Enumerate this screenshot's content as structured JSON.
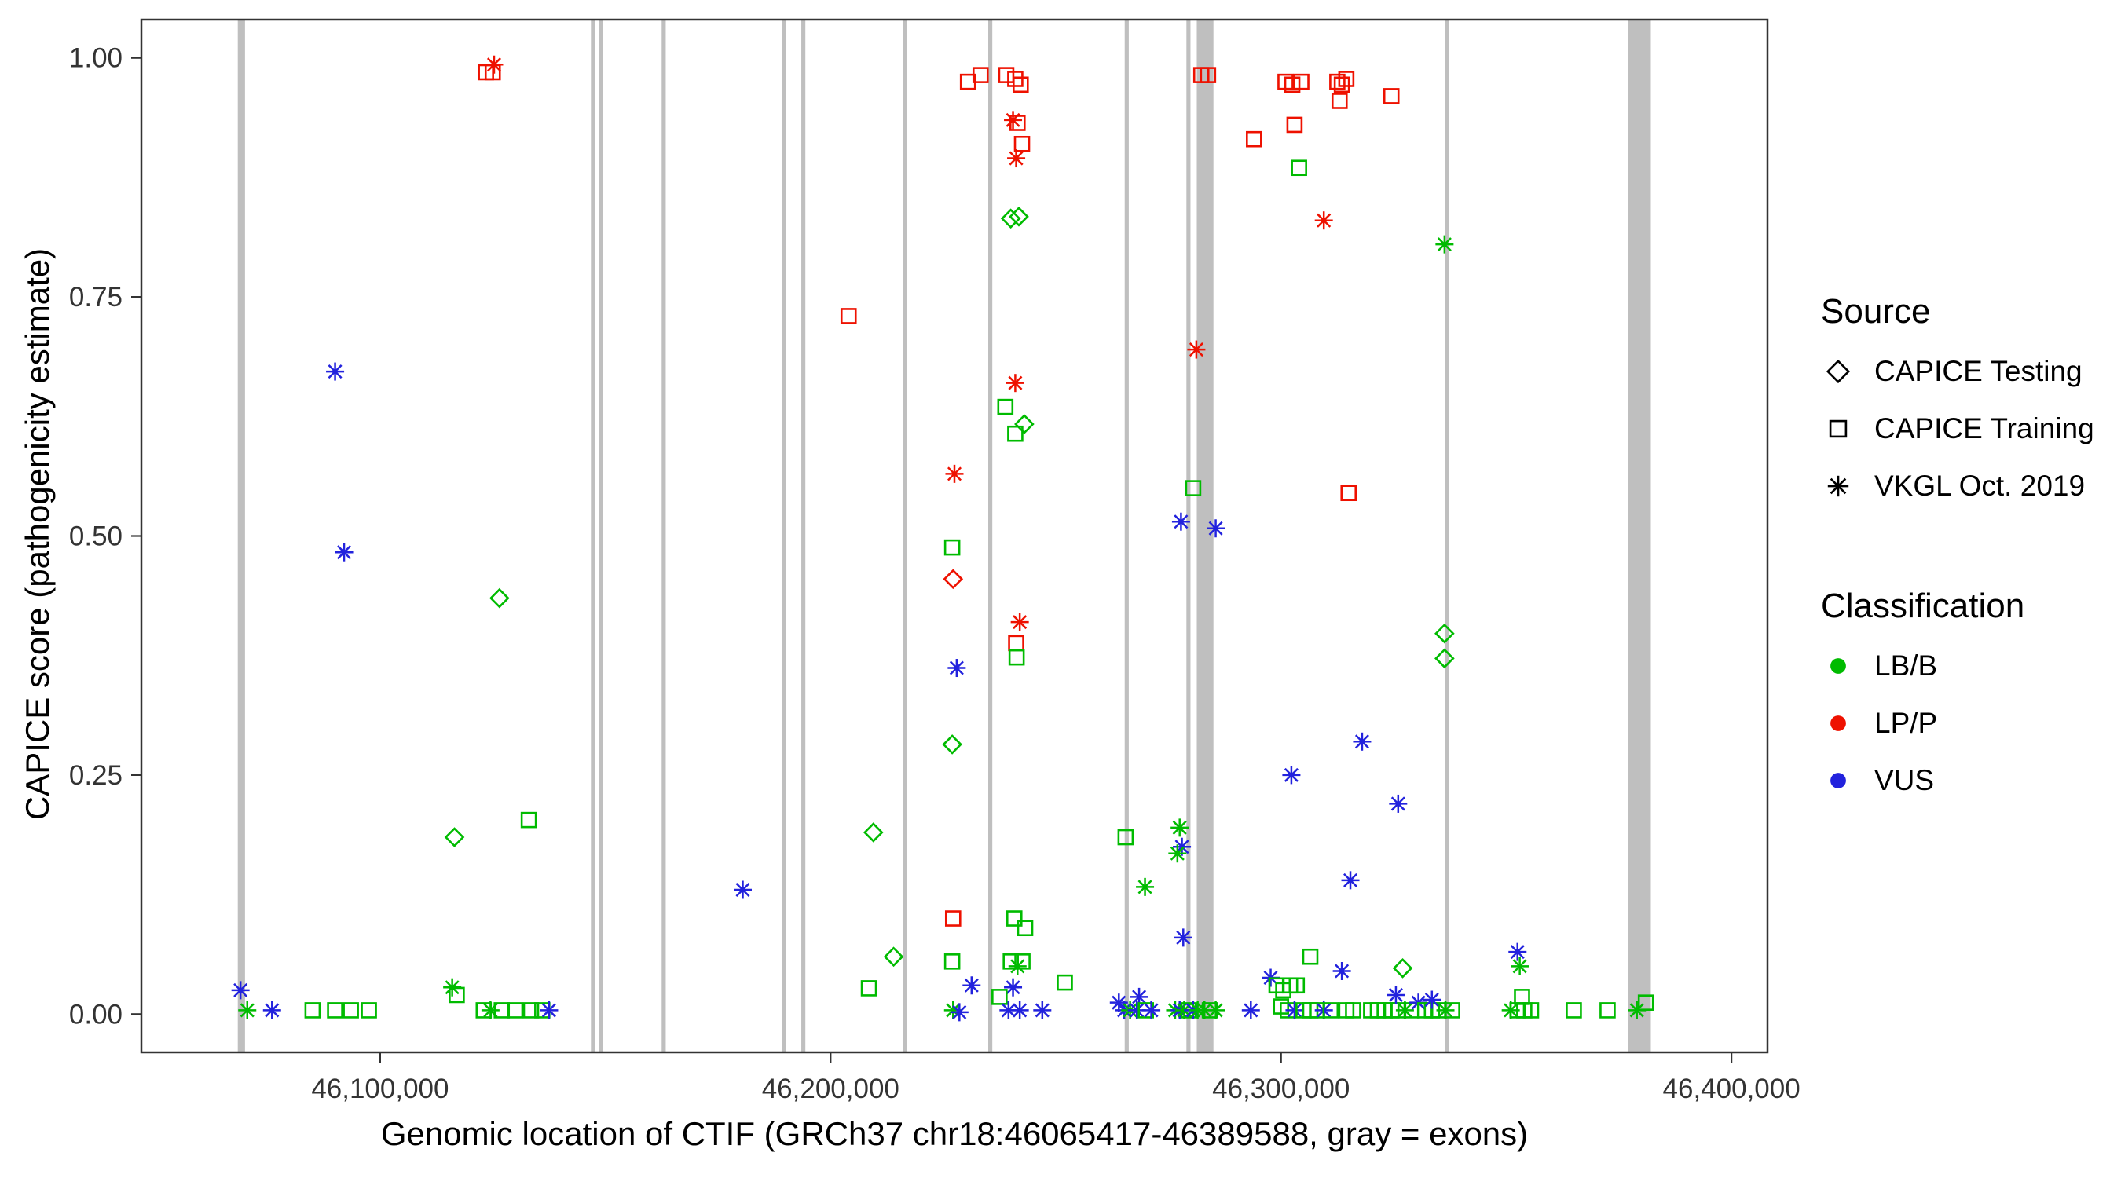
{
  "figure": {
    "xlabel": "Genomic location of CTIF (GRCh37 chr18:46065417-46389588, gray = exons)",
    "ylabel": "CAPICE score (pathogenicity estimate)"
  },
  "legend": {
    "source_title": "Source",
    "source_items": [
      {
        "label": "CAPICE Testing",
        "shape": "diamond"
      },
      {
        "label": "CAPICE Training",
        "shape": "square"
      },
      {
        "label": "VKGL Oct. 2019",
        "shape": "asterisk"
      }
    ],
    "classification_title": "Classification",
    "classification_items": [
      {
        "label": "LB/B",
        "key": "LB/B"
      },
      {
        "label": "LP/P",
        "key": "LP/P"
      },
      {
        "label": "VUS",
        "key": "VUS"
      }
    ]
  },
  "chart_data": {
    "type": "scatter",
    "title": "",
    "xlabel": "Genomic location of CTIF (GRCh37 chr18:46065417-46389588, gray = exons)",
    "ylabel": "CAPICE score (pathogenicity estimate)",
    "xlim": [
      46047000,
      46408000
    ],
    "ylim": [
      -0.04,
      1.04
    ],
    "xticks": [
      46100000,
      46200000,
      46300000,
      46400000
    ],
    "xtick_labels": [
      "46,100,000",
      "46,200,000",
      "46,300,000",
      "46,400,000"
    ],
    "yticks": [
      0,
      0.25,
      0.5,
      0.75,
      1.0
    ],
    "ytick_labels": [
      "0.00",
      "0.25",
      "0.50",
      "0.75",
      "1.00"
    ],
    "grid": false,
    "legend_position": "right",
    "exon_color": "#bfbfbf",
    "exons": [
      [
        46068400,
        46070000
      ],
      [
        46146800,
        46147700
      ],
      [
        46148500,
        46149400
      ],
      [
        46162500,
        46163400
      ],
      [
        46189200,
        46190100
      ],
      [
        46193500,
        46194400
      ],
      [
        46216100,
        46217000
      ],
      [
        46235000,
        46235900
      ],
      [
        46265300,
        46266200
      ],
      [
        46279000,
        46279900
      ],
      [
        46281300,
        46285000
      ],
      [
        46336400,
        46337300
      ],
      [
        46377000,
        46382100
      ]
    ],
    "class_colors": {
      "LB/B": "#00BB00",
      "LP/P": "#EE1100",
      "VUS": "#2222DD"
    },
    "shape_source": {
      "diamond": "CAPICE Testing",
      "square": "CAPICE Training",
      "asterisk": "VKGL Oct. 2019"
    },
    "points": [
      [
        46123500,
        0.985,
        "LP/P",
        "square"
      ],
      [
        46125000,
        0.985,
        "LP/P",
        "square"
      ],
      [
        46125300,
        0.993,
        "LP/P",
        "asterisk"
      ],
      [
        46090000,
        0.672,
        "VUS",
        "asterisk"
      ],
      [
        46092000,
        0.483,
        "VUS",
        "asterisk"
      ],
      [
        46126500,
        0.435,
        "LB/B",
        "diamond"
      ],
      [
        46116500,
        0.185,
        "LB/B",
        "diamond"
      ],
      [
        46133000,
        0.203,
        "LB/B",
        "square"
      ],
      [
        46069000,
        0.025,
        "VUS",
        "asterisk"
      ],
      [
        46070500,
        0.004,
        "LB/B",
        "asterisk"
      ],
      [
        46076000,
        0.004,
        "VUS",
        "asterisk"
      ],
      [
        46085000,
        0.004,
        "LB/B",
        "square"
      ],
      [
        46090000,
        0.004,
        "LB/B",
        "square"
      ],
      [
        46093500,
        0.004,
        "LB/B",
        "square"
      ],
      [
        46097500,
        0.004,
        "LB/B",
        "square"
      ],
      [
        46116000,
        0.028,
        "LB/B",
        "asterisk"
      ],
      [
        46117000,
        0.02,
        "LB/B",
        "square"
      ],
      [
        46123000,
        0.004,
        "LB/B",
        "square"
      ],
      [
        46124500,
        0.004,
        "LB/B",
        "asterisk"
      ],
      [
        46127000,
        0.004,
        "LB/B",
        "square"
      ],
      [
        46130000,
        0.004,
        "LB/B",
        "square"
      ],
      [
        46133500,
        0.004,
        "LB/B",
        "square"
      ],
      [
        46136000,
        0.004,
        "LB/B",
        "square"
      ],
      [
        46137500,
        0.004,
        "VUS",
        "asterisk"
      ],
      [
        46180500,
        0.13,
        "VUS",
        "asterisk"
      ],
      [
        46204000,
        0.73,
        "LP/P",
        "square"
      ],
      [
        46208500,
        0.027,
        "LB/B",
        "square"
      ],
      [
        46209500,
        0.19,
        "LB/B",
        "diamond"
      ],
      [
        46214000,
        0.06,
        "LB/B",
        "diamond"
      ],
      [
        46227500,
        0.565,
        "LP/P",
        "asterisk"
      ],
      [
        46227000,
        0.488,
        "LB/B",
        "square"
      ],
      [
        46227200,
        0.455,
        "LP/P",
        "diamond"
      ],
      [
        46228000,
        0.362,
        "VUS",
        "asterisk"
      ],
      [
        46227000,
        0.282,
        "LB/B",
        "diamond"
      ],
      [
        46227200,
        0.1,
        "LP/P",
        "square"
      ],
      [
        46227000,
        0.055,
        "LB/B",
        "square"
      ],
      [
        46231300,
        0.03,
        "VUS",
        "asterisk"
      ],
      [
        46227200,
        0.004,
        "LB/B",
        "asterisk"
      ],
      [
        46228600,
        0.002,
        "VUS",
        "asterisk"
      ],
      [
        46230500,
        0.975,
        "LP/P",
        "square"
      ],
      [
        46233300,
        0.982,
        "LP/P",
        "square"
      ],
      [
        46239000,
        0.982,
        "LP/P",
        "square"
      ],
      [
        46241000,
        0.978,
        "LP/P",
        "square"
      ],
      [
        46242200,
        0.972,
        "LP/P",
        "square"
      ],
      [
        46240500,
        0.935,
        "LP/P",
        "asterisk"
      ],
      [
        46241500,
        0.932,
        "LP/P",
        "square"
      ],
      [
        46242500,
        0.91,
        "LP/P",
        "square"
      ],
      [
        46241200,
        0.895,
        "LP/P",
        "asterisk"
      ],
      [
        46240000,
        0.832,
        "LB/B",
        "diamond"
      ],
      [
        46241800,
        0.834,
        "LB/B",
        "diamond"
      ],
      [
        46241000,
        0.66,
        "LP/P",
        "asterisk"
      ],
      [
        46238800,
        0.635,
        "LB/B",
        "square"
      ],
      [
        46243000,
        0.617,
        "LB/B",
        "diamond"
      ],
      [
        46241000,
        0.607,
        "LB/B",
        "square"
      ],
      [
        46242000,
        0.41,
        "LP/P",
        "asterisk"
      ],
      [
        46241200,
        0.388,
        "LP/P",
        "square"
      ],
      [
        46241300,
        0.373,
        "LB/B",
        "square"
      ],
      [
        46240800,
        0.1,
        "LB/B",
        "square"
      ],
      [
        46243200,
        0.09,
        "LB/B",
        "square"
      ],
      [
        46240000,
        0.055,
        "LB/B",
        "square"
      ],
      [
        46241500,
        0.05,
        "LB/B",
        "asterisk"
      ],
      [
        46242600,
        0.055,
        "LB/B",
        "square"
      ],
      [
        46240500,
        0.028,
        "VUS",
        "asterisk"
      ],
      [
        46237500,
        0.018,
        "LB/B",
        "square"
      ],
      [
        46239500,
        0.004,
        "VUS",
        "asterisk"
      ],
      [
        46242000,
        0.004,
        "VUS",
        "asterisk"
      ],
      [
        46247000,
        0.004,
        "VUS",
        "asterisk"
      ],
      [
        46252000,
        0.033,
        "LB/B",
        "square"
      ],
      [
        46265500,
        0.185,
        "LB/B",
        "square"
      ],
      [
        46269800,
        0.133,
        "LB/B",
        "asterisk"
      ],
      [
        46264000,
        0.012,
        "VUS",
        "asterisk"
      ],
      [
        46265200,
        0.004,
        "VUS",
        "asterisk"
      ],
      [
        46266500,
        0.004,
        "LB/B",
        "asterisk"
      ],
      [
        46268000,
        0.004,
        "VUS",
        "asterisk"
      ],
      [
        46268500,
        0.018,
        "VUS",
        "asterisk"
      ],
      [
        46270000,
        0.004,
        "LB/B",
        "square"
      ],
      [
        46271200,
        0.004,
        "VUS",
        "asterisk"
      ],
      [
        46277500,
        0.195,
        "LB/B",
        "asterisk"
      ],
      [
        46278000,
        0.175,
        "VUS",
        "asterisk"
      ],
      [
        46277000,
        0.168,
        "LB/B",
        "asterisk"
      ],
      [
        46278300,
        0.08,
        "VUS",
        "asterisk"
      ],
      [
        46277800,
        0.515,
        "VUS",
        "asterisk"
      ],
      [
        46285500,
        0.508,
        "VUS",
        "asterisk"
      ],
      [
        46280500,
        0.55,
        "LB/B",
        "square"
      ],
      [
        46281200,
        0.695,
        "LP/P",
        "asterisk"
      ],
      [
        46282300,
        0.982,
        "LP/P",
        "square"
      ],
      [
        46283800,
        0.982,
        "LP/P",
        "square"
      ],
      [
        46276500,
        0.004,
        "LB/B",
        "asterisk"
      ],
      [
        46277500,
        0.004,
        "VUS",
        "asterisk"
      ],
      [
        46278500,
        0.004,
        "LB/B",
        "asterisk"
      ],
      [
        46279500,
        0.004,
        "LB/B",
        "square"
      ],
      [
        46280500,
        0.004,
        "VUS",
        "asterisk"
      ],
      [
        46281500,
        0.004,
        "LB/B",
        "asterisk"
      ],
      [
        46283000,
        0.004,
        "LB/B",
        "asterisk"
      ],
      [
        46284200,
        0.004,
        "LB/B",
        "square"
      ],
      [
        46285500,
        0.004,
        "LB/B",
        "asterisk"
      ],
      [
        46293300,
        0.004,
        "VUS",
        "asterisk"
      ],
      [
        46294000,
        0.915,
        "LP/P",
        "square"
      ],
      [
        46301000,
        0.975,
        "LP/P",
        "square"
      ],
      [
        46302500,
        0.972,
        "LP/P",
        "square"
      ],
      [
        46304500,
        0.975,
        "LP/P",
        "square"
      ],
      [
        46303000,
        0.93,
        "LP/P",
        "square"
      ],
      [
        46304000,
        0.885,
        "LB/B",
        "square"
      ],
      [
        46309500,
        0.83,
        "LP/P",
        "asterisk"
      ],
      [
        46312500,
        0.975,
        "LP/P",
        "square"
      ],
      [
        46313500,
        0.972,
        "LP/P",
        "square"
      ],
      [
        46314500,
        0.978,
        "LP/P",
        "square"
      ],
      [
        46313000,
        0.955,
        "LP/P",
        "square"
      ],
      [
        46315000,
        0.545,
        "LP/P",
        "square"
      ],
      [
        46324500,
        0.96,
        "LP/P",
        "square"
      ],
      [
        46302300,
        0.25,
        "VUS",
        "asterisk"
      ],
      [
        46306500,
        0.06,
        "LB/B",
        "square"
      ],
      [
        46297700,
        0.038,
        "VUS",
        "asterisk"
      ],
      [
        46315400,
        0.14,
        "VUS",
        "asterisk"
      ],
      [
        46318000,
        0.285,
        "VUS",
        "asterisk"
      ],
      [
        46326000,
        0.22,
        "VUS",
        "asterisk"
      ],
      [
        46327000,
        0.048,
        "LB/B",
        "diamond"
      ],
      [
        46336300,
        0.805,
        "LB/B",
        "asterisk"
      ],
      [
        46336300,
        0.398,
        "LB/B",
        "diamond"
      ],
      [
        46336300,
        0.372,
        "LB/B",
        "diamond"
      ],
      [
        46299000,
        0.03,
        "LB/B",
        "square"
      ],
      [
        46300500,
        0.025,
        "LB/B",
        "square"
      ],
      [
        46302000,
        0.03,
        "LB/B",
        "square"
      ],
      [
        46303500,
        0.03,
        "LB/B",
        "square"
      ],
      [
        46300000,
        0.008,
        "LB/B",
        "square"
      ],
      [
        46301500,
        0.004,
        "LB/B",
        "square"
      ],
      [
        46303000,
        0.004,
        "VUS",
        "asterisk"
      ],
      [
        46305000,
        0.004,
        "LB/B",
        "square"
      ],
      [
        46306500,
        0.004,
        "LB/B",
        "square"
      ],
      [
        46308000,
        0.004,
        "LB/B",
        "square"
      ],
      [
        46309500,
        0.004,
        "VUS",
        "asterisk"
      ],
      [
        46311000,
        0.004,
        "LB/B",
        "square"
      ],
      [
        46313500,
        0.045,
        "VUS",
        "asterisk"
      ],
      [
        46314500,
        0.004,
        "LB/B",
        "square"
      ],
      [
        46316000,
        0.004,
        "LB/B",
        "square"
      ],
      [
        46320000,
        0.004,
        "LB/B",
        "square"
      ],
      [
        46321500,
        0.004,
        "LB/B",
        "square"
      ],
      [
        46323000,
        0.004,
        "LB/B",
        "square"
      ],
      [
        46324500,
        0.004,
        "LB/B",
        "square"
      ],
      [
        46326000,
        0.004,
        "LB/B",
        "square"
      ],
      [
        46327500,
        0.004,
        "LB/B",
        "asterisk"
      ],
      [
        46329000,
        0.004,
        "LB/B",
        "square"
      ],
      [
        46330500,
        0.012,
        "VUS",
        "asterisk"
      ],
      [
        46332000,
        0.004,
        "LB/B",
        "square"
      ],
      [
        46333500,
        0.004,
        "LB/B",
        "square"
      ],
      [
        46335000,
        0.004,
        "LB/B",
        "square"
      ],
      [
        46336500,
        0.004,
        "LB/B",
        "asterisk"
      ],
      [
        46338000,
        0.004,
        "LB/B",
        "square"
      ],
      [
        46325500,
        0.02,
        "VUS",
        "asterisk"
      ],
      [
        46333500,
        0.015,
        "VUS",
        "asterisk"
      ],
      [
        46352500,
        0.065,
        "VUS",
        "asterisk"
      ],
      [
        46353000,
        0.05,
        "LB/B",
        "asterisk"
      ],
      [
        46351000,
        0.004,
        "LB/B",
        "asterisk"
      ],
      [
        46352500,
        0.004,
        "LB/B",
        "square"
      ],
      [
        46354000,
        0.004,
        "LB/B",
        "square"
      ],
      [
        46355500,
        0.004,
        "LB/B",
        "square"
      ],
      [
        46353500,
        0.018,
        "LB/B",
        "square"
      ],
      [
        46365000,
        0.004,
        "LB/B",
        "square"
      ],
      [
        46372500,
        0.004,
        "LB/B",
        "square"
      ],
      [
        46379000,
        0.004,
        "LB/B",
        "asterisk"
      ],
      [
        46381000,
        0.012,
        "LB/B",
        "square"
      ]
    ]
  }
}
